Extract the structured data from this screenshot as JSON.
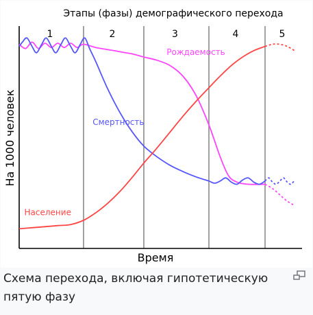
{
  "chart_data": {
    "type": "line",
    "title": "Этапы (фазы) демографического перехода",
    "xlabel": "Время",
    "ylabel": "На 1000 человек",
    "phases": [
      "1",
      "2",
      "3",
      "4",
      "5"
    ],
    "phase_boundaries": [
      0,
      1,
      2,
      3,
      4,
      5
    ],
    "grid": false,
    "ylim": [
      0,
      100
    ],
    "series": [
      {
        "name": "Рождаемость",
        "color": "#ff44ff",
        "label_x": 2.35,
        "label_y": 89,
        "points": [
          [
            0.0,
            94
          ],
          [
            0.1,
            92
          ],
          [
            0.2,
            95
          ],
          [
            0.3,
            92
          ],
          [
            0.4,
            94.5
          ],
          [
            0.5,
            92.5
          ],
          [
            0.6,
            94.5
          ],
          [
            0.7,
            92.5
          ],
          [
            0.8,
            94.5
          ],
          [
            0.9,
            92.5
          ],
          [
            1.0,
            94
          ],
          [
            1.2,
            92.5
          ],
          [
            1.4,
            91.5
          ],
          [
            1.6,
            90.5
          ],
          [
            1.8,
            89.5
          ],
          [
            2.0,
            88
          ],
          [
            2.2,
            86.5
          ],
          [
            2.4,
            84
          ],
          [
            2.6,
            79
          ],
          [
            2.8,
            70
          ],
          [
            3.0,
            56
          ],
          [
            3.2,
            41
          ],
          [
            3.35,
            32
          ],
          [
            3.5,
            29
          ],
          [
            3.7,
            28
          ],
          [
            4.0,
            28
          ],
          [
            4.2,
            26
          ],
          [
            4.4,
            23
          ],
          [
            4.6,
            20
          ],
          [
            4.8,
            18
          ]
        ],
        "dashed_from_x": 4.0
      },
      {
        "name": "Смертность",
        "color": "#5555ff",
        "label_x": 1.15,
        "label_y": 56,
        "points": [
          [
            0.0,
            93
          ],
          [
            0.05,
            95
          ],
          [
            0.12,
            97
          ],
          [
            0.2,
            93
          ],
          [
            0.27,
            90
          ],
          [
            0.35,
            94
          ],
          [
            0.42,
            97
          ],
          [
            0.5,
            93
          ],
          [
            0.57,
            90
          ],
          [
            0.65,
            94
          ],
          [
            0.72,
            97
          ],
          [
            0.8,
            93
          ],
          [
            0.87,
            90
          ],
          [
            0.95,
            94
          ],
          [
            1.02,
            97
          ],
          [
            1.1,
            92
          ],
          [
            1.2,
            86
          ],
          [
            1.4,
            73
          ],
          [
            1.6,
            62
          ],
          [
            1.8,
            53
          ],
          [
            2.0,
            46
          ],
          [
            2.2,
            41
          ],
          [
            2.4,
            37
          ],
          [
            2.6,
            34
          ],
          [
            2.8,
            31.5
          ],
          [
            3.0,
            29.5
          ],
          [
            3.1,
            28.5
          ],
          [
            3.2,
            29.5
          ],
          [
            3.3,
            31
          ],
          [
            3.4,
            29
          ],
          [
            3.5,
            28
          ],
          [
            3.6,
            30
          ],
          [
            3.7,
            31
          ],
          [
            3.8,
            29
          ],
          [
            3.9,
            28
          ],
          [
            4.0,
            29.5
          ],
          [
            4.1,
            31
          ],
          [
            4.2,
            29
          ],
          [
            4.3,
            28
          ],
          [
            4.4,
            29.5
          ],
          [
            4.5,
            31
          ],
          [
            4.6,
            29
          ],
          [
            4.7,
            28
          ],
          [
            4.8,
            30
          ]
        ],
        "dashed_from_x": 4.0
      },
      {
        "name": "Население",
        "color": "#ff4444",
        "label_x": 0.08,
        "label_y": 13.5,
        "points": [
          [
            0.0,
            7
          ],
          [
            0.2,
            7.5
          ],
          [
            0.4,
            8
          ],
          [
            0.6,
            8.5
          ],
          [
            0.8,
            9
          ],
          [
            1.0,
            11
          ],
          [
            1.2,
            14.5
          ],
          [
            1.4,
            19
          ],
          [
            1.6,
            24.5
          ],
          [
            1.8,
            31
          ],
          [
            2.0,
            38
          ],
          [
            2.2,
            45
          ],
          [
            2.4,
            52.5
          ],
          [
            2.6,
            60
          ],
          [
            2.8,
            67
          ],
          [
            3.0,
            73.5
          ],
          [
            3.2,
            79
          ],
          [
            3.4,
            84
          ],
          [
            3.6,
            88
          ],
          [
            3.8,
            91
          ],
          [
            4.0,
            93
          ],
          [
            4.2,
            94
          ],
          [
            4.4,
            94
          ],
          [
            4.6,
            93
          ],
          [
            4.8,
            91
          ]
        ],
        "dashed_from_x": 4.0
      }
    ]
  },
  "caption": "Схема перехода, включая гипотетическую пятую фазу",
  "enlarge_icon": "enlarge-icon"
}
